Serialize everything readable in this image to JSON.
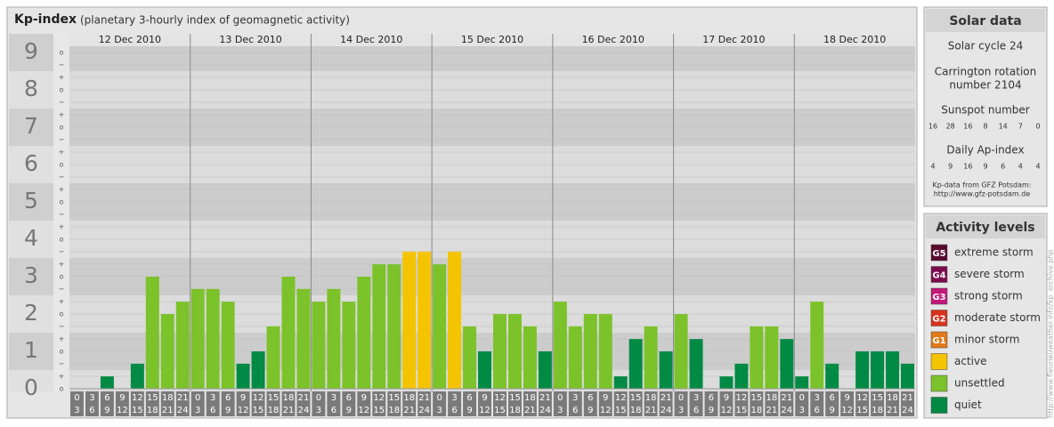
{
  "chart_data": {
    "type": "bar",
    "title": "Kp-index",
    "subtitle": "(planetary 3-hourly index of geomagnetic activity)",
    "ylim": [
      0,
      9
    ],
    "yticks": [
      0,
      1,
      2,
      3,
      4,
      5,
      6,
      7,
      8,
      9
    ],
    "minor_labels": [
      "−",
      "o",
      "+"
    ],
    "hours": [
      [
        "0",
        "3"
      ],
      [
        "3",
        "6"
      ],
      [
        "6",
        "9"
      ],
      [
        "9",
        "12"
      ],
      [
        "12",
        "15"
      ],
      [
        "15",
        "18"
      ],
      [
        "18",
        "21"
      ],
      [
        "21",
        "24"
      ]
    ],
    "days": [
      {
        "label": "12 Dec 2010",
        "values": [
          0,
          0,
          0.33,
          0,
          0.67,
          3,
          2,
          2.33
        ],
        "colors": [
          "#008a44",
          "#008a44",
          "#008a44",
          "#008a44",
          "#008a44",
          "#7cc22a",
          "#7cc22a",
          "#7cc22a"
        ]
      },
      {
        "label": "13 Dec 2010",
        "values": [
          2.67,
          2.67,
          2.33,
          0.67,
          1,
          1.67,
          3,
          2.67
        ],
        "colors": [
          "#7cc22a",
          "#7cc22a",
          "#7cc22a",
          "#008a44",
          "#008a44",
          "#7cc22a",
          "#7cc22a",
          "#7cc22a"
        ]
      },
      {
        "label": "14 Dec 2010",
        "values": [
          2.33,
          2.67,
          2.33,
          3,
          3.33,
          3.33,
          3.67,
          3.67
        ],
        "colors": [
          "#7cc22a",
          "#7cc22a",
          "#7cc22a",
          "#7cc22a",
          "#7cc22a",
          "#7cc22a",
          "#f5c400",
          "#f5c400"
        ]
      },
      {
        "label": "15 Dec 2010",
        "values": [
          3.33,
          3.67,
          1.67,
          1,
          2,
          2,
          1.67,
          1
        ],
        "colors": [
          "#7cc22a",
          "#f5c400",
          "#7cc22a",
          "#008a44",
          "#7cc22a",
          "#7cc22a",
          "#7cc22a",
          "#008a44"
        ]
      },
      {
        "label": "16 Dec 2010",
        "values": [
          2.33,
          1.67,
          2,
          2,
          0.33,
          1.33,
          1.67,
          1
        ],
        "colors": [
          "#7cc22a",
          "#7cc22a",
          "#7cc22a",
          "#7cc22a",
          "#008a44",
          "#008a44",
          "#7cc22a",
          "#008a44"
        ]
      },
      {
        "label": "17 Dec 2010",
        "values": [
          2,
          1.33,
          0,
          0.33,
          0.67,
          1.67,
          1.67,
          1.33
        ],
        "colors": [
          "#7cc22a",
          "#008a44",
          "#008a44",
          "#008a44",
          "#008a44",
          "#7cc22a",
          "#7cc22a",
          "#008a44"
        ]
      },
      {
        "label": "18 Dec 2010",
        "values": [
          0.33,
          2.33,
          0.67,
          0,
          1,
          1,
          1,
          0.67
        ],
        "colors": [
          "#008a44",
          "#7cc22a",
          "#008a44",
          "#008a44",
          "#008a44",
          "#008a44",
          "#008a44",
          "#008a44"
        ]
      }
    ]
  },
  "solar": {
    "title": "Solar data",
    "cycle": "Solar cycle 24",
    "carrington": [
      "Carrington rotation",
      "number 2104"
    ],
    "sunspot_title": "Sunspot number",
    "sunspot": [
      16,
      28,
      16,
      8,
      14,
      7,
      0
    ],
    "ap_title": "Daily Ap-index",
    "ap": [
      4,
      9,
      16,
      9,
      6,
      4,
      4
    ],
    "source": [
      "Kp-data from GFZ Potsdam:",
      "http://www.gfz-potsdam.de"
    ]
  },
  "legend": {
    "title": "Activity levels",
    "items": [
      {
        "code": "G5",
        "label": "extreme storm",
        "color": "#5a0a2e"
      },
      {
        "code": "G4",
        "label": "severe storm",
        "color": "#7e0a4e"
      },
      {
        "code": "G3",
        "label": "strong storm",
        "color": "#c2187a"
      },
      {
        "code": "G2",
        "label": "moderate storm",
        "color": "#d8321e"
      },
      {
        "code": "G1",
        "label": "minor storm",
        "color": "#e27a1a"
      },
      {
        "code": null,
        "label": "active",
        "color": "#f5c400"
      },
      {
        "code": null,
        "label": "unsettled",
        "color": "#7cc22a"
      },
      {
        "code": null,
        "label": "quiet",
        "color": "#008a44"
      }
    ]
  },
  "credit": "http://www.fleurieuweather.info/kp_archive.php"
}
